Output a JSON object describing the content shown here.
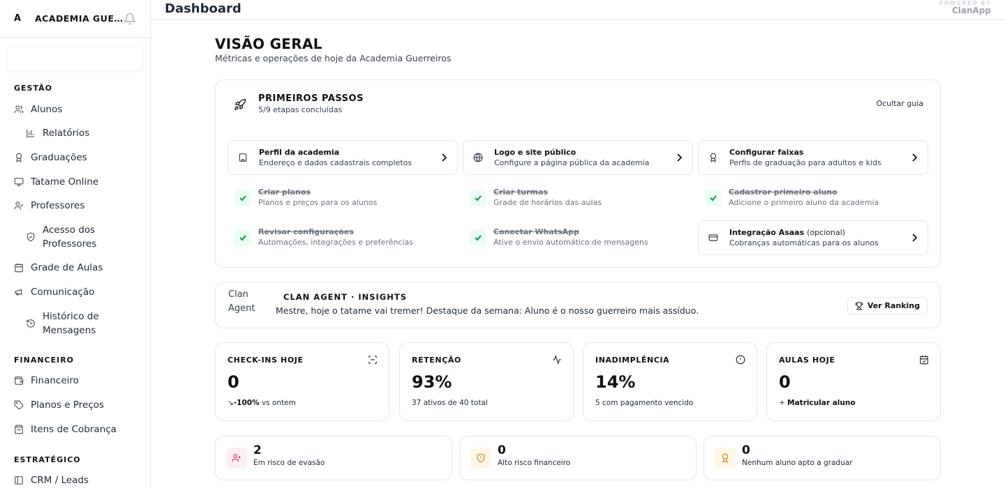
{
  "sidebar": {
    "logo": "A",
    "academy_name": "ACADEMIA GUE...",
    "sections": {
      "gestao": "GESTÃO",
      "financeiro": "FINANCEIRO",
      "estrategico": "ESTRATÉGICO"
    },
    "items": {
      "alunos": "Alunos",
      "relatorios": "Relatórios",
      "graduacoes": "Graduações",
      "tatame": "Tatame Online",
      "professores": "Professores",
      "acesso_1": "Acesso dos",
      "acesso_2": "Professores",
      "grade": "Grade de Aulas",
      "comunicacao": "Comunicação",
      "historico_1": "Histórico de",
      "historico_2": "Mensagens",
      "financeiro": "Financeiro",
      "planos": "Planos e Preços",
      "itens": "Itens de Cobrança",
      "crm": "CRM / Leads"
    }
  },
  "header": {
    "title": "Dashboard",
    "powered_by": "POWERED BY",
    "brand": "ClanApp"
  },
  "page": {
    "title": "VISÃO GERAL",
    "subtitle": "Métricas e operações de hoje da Academia Guerreiros"
  },
  "primeiros_passos": {
    "title": "PRIMEIROS PASSOS",
    "progress": "5/9 etapas concluídas",
    "progress_fraction": 0.556,
    "hide_label": "Ocultar guia",
    "steps": [
      {
        "title": "Perfil da academia",
        "desc": "Endereço e dados cadastrais completos",
        "done": false,
        "icon": "building-icon"
      },
      {
        "title": "Logo e site público",
        "desc": "Configure a página pública da academia",
        "done": false,
        "icon": "globe-icon"
      },
      {
        "title": "Configurar faixas",
        "desc": "Perfis de graduação para adultos e kids",
        "done": false,
        "icon": "award-icon"
      },
      {
        "title": "Criar planos",
        "desc": "Planos e preços para os alunos",
        "done": true
      },
      {
        "title": "Criar turmas",
        "desc": "Grade de horários das aulas",
        "done": true
      },
      {
        "title": "Cadastrar primeiro aluno",
        "desc": "Adicione o primeiro aluno da academia",
        "done": true
      },
      {
        "title": "Revisar configurações",
        "desc": "Automações, integrações e preferências",
        "done": true
      },
      {
        "title": "Conectar WhatsApp",
        "desc": "Ative o envio automático de mensagens",
        "done": true
      },
      {
        "title": "Integração Asaas",
        "optional": "(opcional)",
        "desc": "Cobranças automáticas para os alunos",
        "done": false,
        "icon": "credit-card-icon"
      }
    ]
  },
  "agent": {
    "img_alt_1": "Clan",
    "img_alt_2": "Agent",
    "title": "CLAN AGENT · INSIGHTS",
    "message": "Mestre, hoje o tatame vai tremer! Destaque da semana: Aluno é o nosso guerreiro mais assíduo.",
    "button": "Ver Ranking"
  },
  "kpis": [
    {
      "label": "CHECK-INS HOJE",
      "value": "0",
      "note_strong": "-100%",
      "note": "vs ontem",
      "icon": "scan-icon"
    },
    {
      "label": "RETENÇÃO",
      "value": "93%",
      "note": "37 ativos de 40 total",
      "icon": "activity-icon"
    },
    {
      "label": "INADIMPLÊNCIA",
      "value": "14%",
      "note": "5 com pagamento vencido",
      "icon": "alert-circle-icon"
    },
    {
      "label": "AULAS HOJE",
      "value": "0",
      "note_strong": "Matricular aluno",
      "icon": "calendar-check-icon"
    }
  ],
  "risks": [
    {
      "value": "2",
      "label": "Em risco de evasão",
      "color": "#e11d48",
      "bg": "#fdeef1"
    },
    {
      "value": "0",
      "label": "Alto risco financeiro",
      "color": "#d97706",
      "bg": "#fef6e7"
    },
    {
      "value": "0",
      "label": "Nenhum aluno apto a graduar",
      "color": "#d97706",
      "bg": "#fef6e7"
    }
  ]
}
